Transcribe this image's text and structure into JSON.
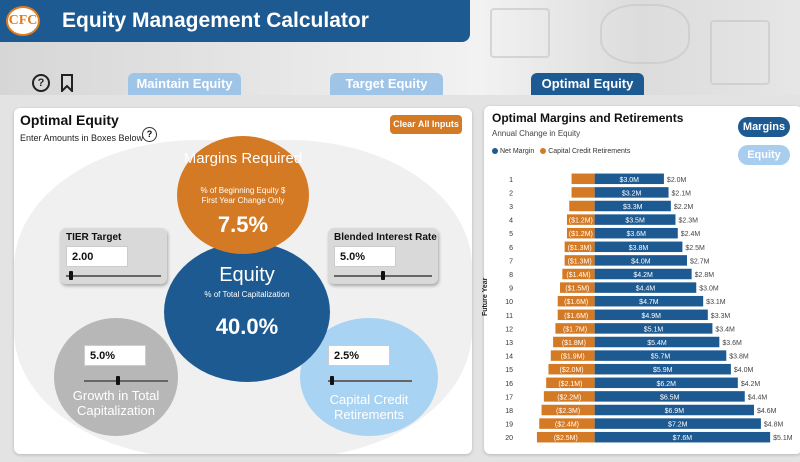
{
  "app": {
    "title": "Equity Management Calculator",
    "logo_text": "CFC",
    "help_icon": "question-circle-icon",
    "bookmark_icon": "bookmark-icon"
  },
  "tabs": [
    {
      "label": "Maintain Equity",
      "active": false
    },
    {
      "label": "Target Equity",
      "active": false
    },
    {
      "label": "Optimal Equity",
      "active": true
    }
  ],
  "left_panel": {
    "title": "Optimal Equity",
    "subtitle": "Enter Amounts in Boxes Below",
    "clear_button": "Clear All Inputs",
    "margins": {
      "title": "Margins Required",
      "line1": "% of Beginning Equity $",
      "line2": "First Year Change Only",
      "value": "7.5%"
    },
    "equity": {
      "title": "Equity",
      "subtitle": "% of Total Capitalization",
      "value": "40.0%"
    },
    "tier": {
      "title": "TIER Target",
      "value": "2.00",
      "slider_level": 0.05
    },
    "blended": {
      "title": "Blended Interest Rate",
      "value": "5.0%",
      "slider_level": 0.5
    },
    "growth": {
      "value": "5.0%",
      "label_line1": "Growth in Total",
      "label_line2": "Capitalization",
      "slider_level": 0.4
    },
    "ccr": {
      "value": "2.5%",
      "label_line1": "Capital Credit",
      "label_line2": "Retirements",
      "slider_level": 0.05
    }
  },
  "right_panel": {
    "title": "Optimal Margins and Retirements",
    "subtitle": "Annual Change in Equity",
    "legend": [
      {
        "name": "Net Margin",
        "color": "#1e5a92"
      },
      {
        "name": "Capital Credit Retirements",
        "color": "#d57a24"
      }
    ],
    "pills": {
      "margins": "Margins",
      "equity": "Equity"
    },
    "y_axis_title": "Future Year"
  },
  "colors": {
    "primary": "#1e5a92",
    "accent": "#d57a24",
    "light_blue": "#a9cdef",
    "grey": "#b7b7b7"
  },
  "chart_data": {
    "type": "bar",
    "orientation": "horizontal",
    "categories": [
      "1",
      "2",
      "3",
      "4",
      "5",
      "6",
      "7",
      "8",
      "9",
      "10",
      "11",
      "12",
      "13",
      "14",
      "15",
      "16",
      "17",
      "18",
      "19",
      "20"
    ],
    "series": [
      {
        "name": "Net Margin",
        "values": [
          3.0,
          3.2,
          3.3,
          3.5,
          3.6,
          3.8,
          4.0,
          4.2,
          4.4,
          4.7,
          4.9,
          5.1,
          5.4,
          5.7,
          5.9,
          6.2,
          6.5,
          6.9,
          7.2,
          7.6
        ],
        "labels": [
          "$3.0M",
          "$3.2M",
          "$3.3M",
          "$3.5M",
          "$3.6M",
          "$3.8M",
          "$4.0M",
          "$4.2M",
          "$4.4M",
          "$4.7M",
          "$4.9M",
          "$5.1M",
          "$5.4M",
          "$5.7M",
          "$5.9M",
          "$6.2M",
          "$6.5M",
          "$6.9M",
          "$7.2M",
          "$7.6M"
        ]
      },
      {
        "name": "Capital Credit Retirements",
        "values": [
          -1.0,
          -1.0,
          -1.1,
          -1.2,
          -1.2,
          -1.3,
          -1.3,
          -1.4,
          -1.5,
          -1.6,
          -1.6,
          -1.7,
          -1.8,
          -1.9,
          -2.0,
          -2.1,
          -2.2,
          -2.3,
          -2.4,
          -2.5
        ],
        "labels": [
          "",
          "",
          "",
          "($1.2M)",
          "($1.2M)",
          "($1.3M)",
          "($1.3M)",
          "($1.4M)",
          "($1.5M)",
          "($1.6M)",
          "($1.6M)",
          "($1.7M)",
          "($1.8M)",
          "($1.9M)",
          "($2.0M)",
          "($2.1M)",
          "($2.2M)",
          "($2.3M)",
          "($2.4M)",
          "($2.5M)"
        ]
      }
    ],
    "totals": [
      "$2.0M",
      "$2.1M",
      "$2.2M",
      "$2.3M",
      "$2.4M",
      "$2.5M",
      "$2.7M",
      "$2.8M",
      "$3.0M",
      "$3.1M",
      "$3.3M",
      "$3.4M",
      "$3.6M",
      "$3.8M",
      "$4.0M",
      "$4.2M",
      "$4.4M",
      "$4.6M",
      "$4.8M",
      "$5.1M"
    ],
    "xlim": [
      -2.8,
      8.2
    ],
    "ylabel": "Future Year",
    "legend_position": "top-left"
  }
}
